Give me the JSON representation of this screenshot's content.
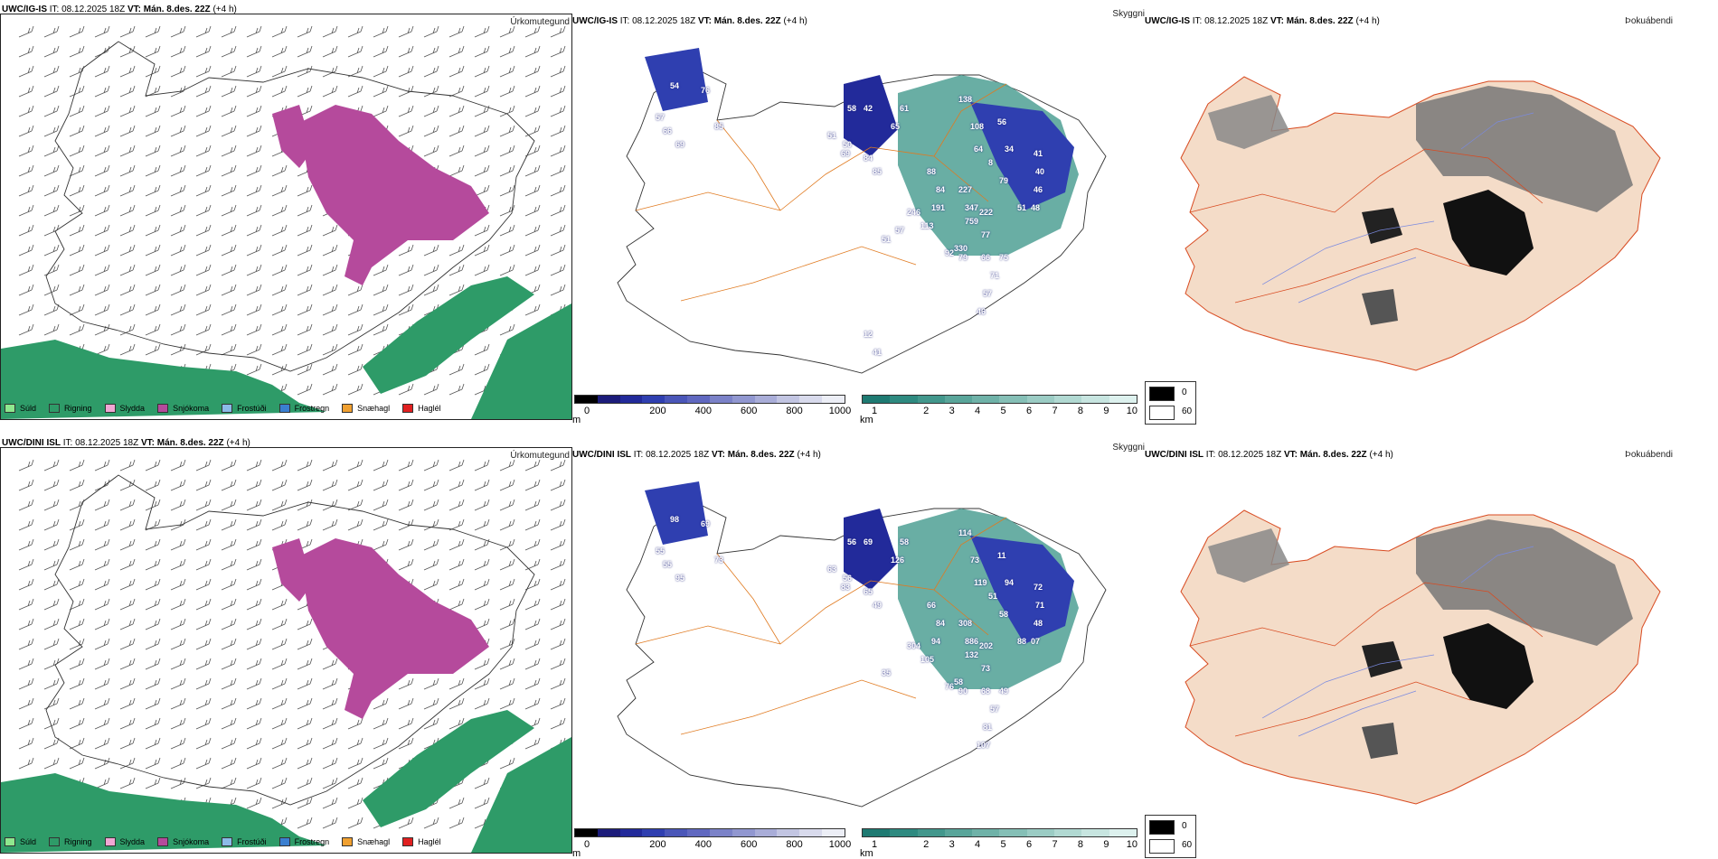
{
  "panels": [
    {
      "model": "UWC/IG-IS",
      "it_label": "IT:",
      "it_value": "08.12.2025 18Z",
      "vt_label": "VT:",
      "vt_value": "Mán. 8.des. 22Z",
      "lead": "(+4 h)",
      "precip_title": "Úrkomutegund",
      "vis_title": "Skyggni",
      "fog_title": "Þokuábendi",
      "snow_labels": [
        "54",
        "57",
        "66",
        "76",
        "85",
        "69",
        "51",
        "50",
        "58",
        "69",
        "84",
        "85",
        "42",
        "61",
        "65",
        "138",
        "108",
        "56",
        "64",
        "34",
        "8",
        "41",
        "40",
        "46",
        "79",
        "48",
        "51",
        "88",
        "84",
        "227",
        "191",
        "347",
        "759",
        "222",
        "113",
        "246",
        "330",
        "77",
        "92",
        "79",
        "66",
        "75",
        "71",
        "57",
        "46",
        "51",
        "57",
        "41",
        "12"
      ]
    },
    {
      "model": "UWC/DINI ISL",
      "it_label": "IT:",
      "it_value": "08.12.2025 18Z",
      "vt_label": "VT:",
      "vt_value": "Mán. 8.des. 22Z",
      "lead": "(+4 h)",
      "precip_title": "Úrkomutegund",
      "vis_title": "Skyggni",
      "fog_title": "Þokuábendi",
      "snow_labels": [
        "98",
        "55",
        "55",
        "69",
        "73",
        "95",
        "63",
        "56",
        "56",
        "83",
        "65",
        "49",
        "69",
        "58",
        "126",
        "114",
        "73",
        "11",
        "119",
        "94",
        "51",
        "72",
        "71",
        "48",
        "58",
        "07",
        "88",
        "66",
        "84",
        "308",
        "94",
        "886",
        "132",
        "202",
        "105",
        "304",
        "58",
        "73",
        "76",
        "90",
        "68",
        "49",
        "57",
        "81",
        "107",
        "35"
      ]
    }
  ],
  "precip_legend": [
    {
      "label": "Súld",
      "color": "#8ee88e"
    },
    {
      "label": "Rigning",
      "color": "#2e9b68"
    },
    {
      "label": "Slydda",
      "color": "#f0a7d4"
    },
    {
      "label": "Snjókoma",
      "color": "#b54a9c"
    },
    {
      "label": "Frostúði",
      "color": "#8bbbe8"
    },
    {
      "label": "Frostregn",
      "color": "#3a7fd0"
    },
    {
      "label": "Snæhagl",
      "color": "#f0a030"
    },
    {
      "label": "Haglél",
      "color": "#e02020"
    }
  ],
  "snow_colorbar": {
    "unit": "m",
    "ticks": [
      "0",
      "200",
      "400",
      "600",
      "800",
      "1000"
    ],
    "colors": [
      "#000000",
      "#1c1c7a",
      "#222a9a",
      "#2f3fb0",
      "#4a56b8",
      "#6068c0",
      "#7b82c8",
      "#9197d0",
      "#a9add8",
      "#c2c5e2",
      "#d8daec",
      "#eceef6"
    ]
  },
  "vis_colorbar": {
    "unit": "km",
    "ticks": [
      "1",
      "2",
      "3",
      "4",
      "5",
      "6",
      "7",
      "8",
      "9",
      "10"
    ],
    "colors": [
      "#1e7a72",
      "#2e8a80",
      "#42978c",
      "#59a59a",
      "#6fb2a8",
      "#85bfb6",
      "#9bccc4",
      "#b1d9d2",
      "#c7e5e0",
      "#ddf1ee"
    ]
  },
  "fog_legend": [
    {
      "label": "0",
      "color": "#000000"
    },
    {
      "label": "60",
      "color": "#ffffff"
    }
  ]
}
